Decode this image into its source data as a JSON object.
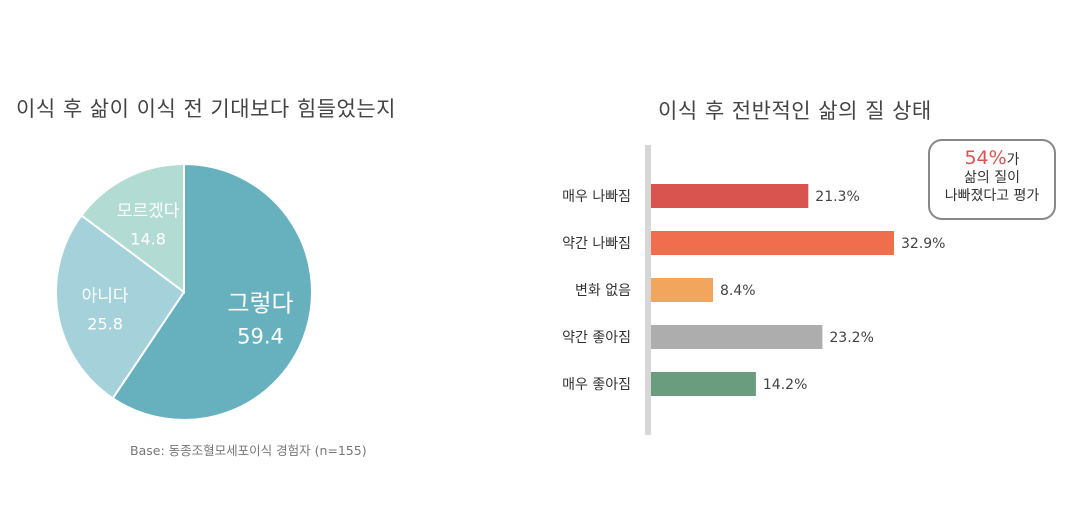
{
  "chart_data": [
    {
      "type": "pie",
      "title": "이식 후 삶이 이식 전 기대보다 힘들었는지",
      "slices": [
        {
          "label": "그렇다",
          "value": 59.4,
          "color": "#66b1bd"
        },
        {
          "label": "아니다",
          "value": 25.8,
          "color": "#a5d2da"
        },
        {
          "label": "모르겠다",
          "value": 14.8,
          "color": "#b2dcd3"
        }
      ],
      "note": "Base: 동종조혈모세포이식 경험자 (n=155)"
    },
    {
      "type": "bar",
      "orientation": "horizontal",
      "title": "이식 후 전반적인 삶의 질 상태",
      "categories": [
        "매우 나빠짐",
        "약간 나빠짐",
        "변화 없음",
        "약간 좋아짐",
        "매우 좋아짐"
      ],
      "values": [
        21.3,
        32.9,
        8.4,
        23.2,
        14.2
      ],
      "value_labels": [
        "21.3%",
        "32.9%",
        "8.4%",
        "23.2%",
        "14.2%"
      ],
      "colors": [
        "#d9534f",
        "#f06e4e",
        "#f2a55c",
        "#adadad",
        "#6a9d7e"
      ],
      "callout": {
        "highlight": "54%",
        "highlight_suffix": "가",
        "line2": "삶의 질이",
        "line3": "나빠졌다고 평가"
      }
    }
  ]
}
